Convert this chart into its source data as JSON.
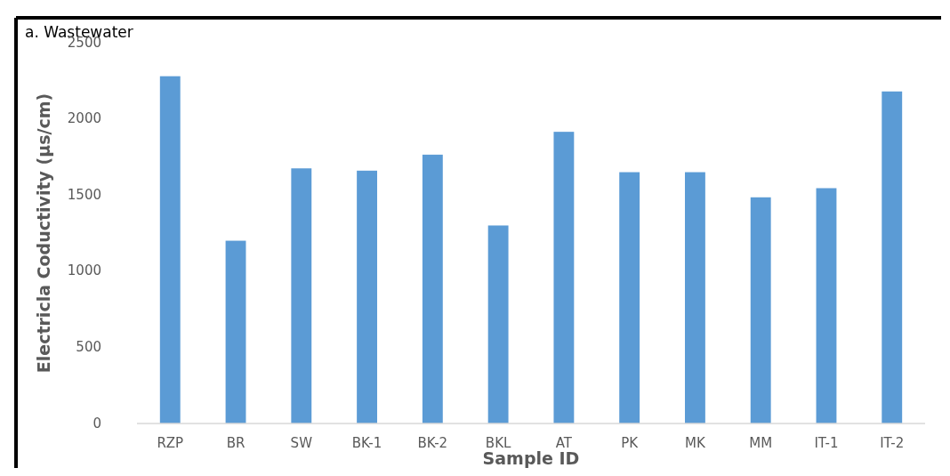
{
  "chart_data": {
    "type": "bar",
    "title": "a. Wastewater",
    "xlabel": "Sample ID",
    "ylabel": "Electricla Coductivity (µs/cm)",
    "categories": [
      "RZP",
      "BR",
      "SW",
      "BK-1",
      "BK-2",
      "BKL",
      "AT",
      "PK",
      "MK",
      "MM",
      "IT-1",
      "IT-2"
    ],
    "values": [
      2280,
      1200,
      1675,
      1660,
      1765,
      1300,
      1915,
      1650,
      1650,
      1485,
      1545,
      2180
    ],
    "color": "#5b9bd5",
    "ylim": [
      0,
      2500
    ],
    "yticks": [
      0,
      500,
      1000,
      1500,
      2000,
      2500
    ],
    "grid": false
  }
}
